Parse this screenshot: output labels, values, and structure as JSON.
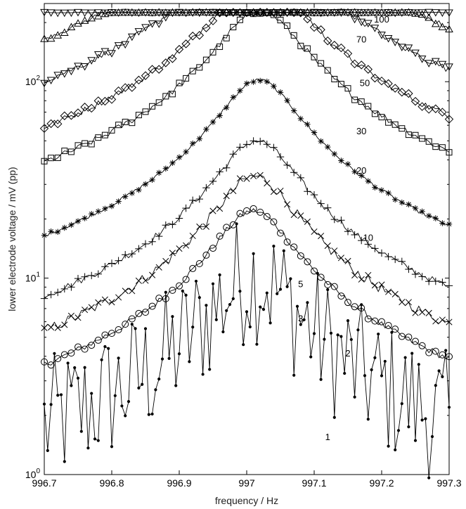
{
  "chart_data": {
    "type": "line",
    "title": "",
    "xlabel": "frequency / Hz",
    "ylabel": "lower electrode voltage / mV (pp)",
    "xlim": [
      996.7,
      997.3
    ],
    "ylim": [
      1,
      250
    ],
    "yscale": "log",
    "grid": false,
    "legend": "none",
    "xticks": [
      "996.7",
      "996.8",
      "996.9",
      "997",
      "997.1",
      "997.2",
      "997.3"
    ],
    "yticks": [
      {
        "value": 1,
        "base": "10",
        "exp": "0"
      },
      {
        "value": 10,
        "base": "10",
        "exp": "1"
      },
      {
        "value": 100,
        "base": "10",
        "exp": "2"
      }
    ],
    "series": [
      {
        "name": "1",
        "marker": "dot",
        "peak": 10.2,
        "f0": 997.01,
        "gamma": 0.055,
        "noise": 0.5,
        "label_x": 997.12,
        "label_y": 1.5
      },
      {
        "name": "2",
        "marker": "circle",
        "peak": 22,
        "f0": 997.01,
        "gamma": 0.052,
        "noise": 0.04,
        "label_x": 997.15,
        "label_y": 4.0
      },
      {
        "name": "3",
        "marker": "x",
        "peak": 33,
        "f0": 997.012,
        "gamma": 0.052,
        "noise": 0.06,
        "label_x": 997.08,
        "label_y": 6.0
      },
      {
        "name": "5",
        "marker": "plus",
        "peak": 50,
        "f0": 997.015,
        "gamma": 0.052,
        "noise": 0.04,
        "label_x": 997.08,
        "label_y": 9.0
      },
      {
        "name": "10",
        "marker": "star",
        "peak": 102,
        "f0": 997.018,
        "gamma": 0.052,
        "noise": 0.02,
        "label_x": 997.18,
        "label_y": 15.5
      },
      {
        "name": "20",
        "marker": "square",
        "peak": 230,
        "f0": 997.02,
        "gamma": 0.055,
        "noise": 0.04,
        "label_x": 997.17,
        "label_y": 34
      },
      {
        "name": "30",
        "marker": "diamond",
        "peak": 330,
        "f0": 997.02,
        "gamma": 0.058,
        "noise": 0.04,
        "label_x": 997.17,
        "label_y": 54
      },
      {
        "name": "50",
        "marker": "triangle-down",
        "peak": 550,
        "f0": 997.02,
        "gamma": 0.06,
        "noise": 0.04,
        "label_x": 997.175,
        "label_y": 95
      },
      {
        "name": "70",
        "marker": "triangle-up",
        "peak": 900,
        "f0": 997.02,
        "gamma": 0.06,
        "noise": 0.03,
        "label_x": 997.17,
        "label_y": 158
      },
      {
        "name": "100",
        "marker": "triangle-down",
        "peak": 1250,
        "f0": 997.02,
        "gamma": 0.062,
        "noise": 0.03,
        "label_x": 997.2,
        "label_y": 200
      }
    ],
    "saturation_level": 225
  }
}
